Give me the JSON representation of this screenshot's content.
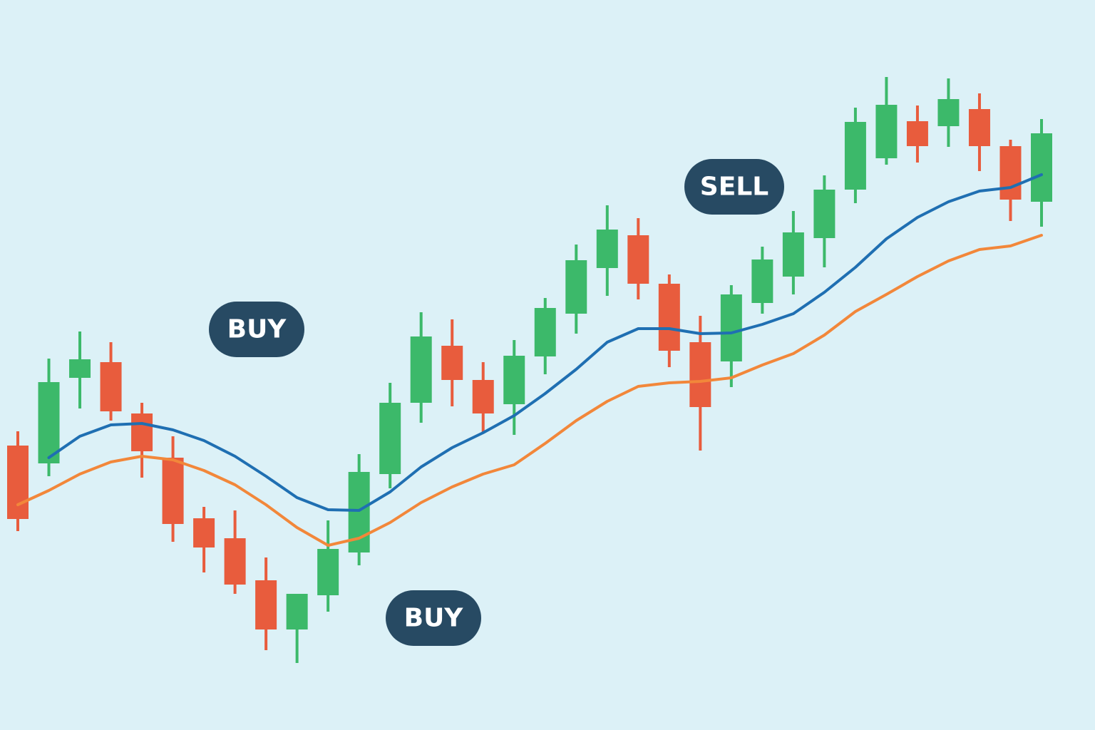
{
  "chart_data": {
    "type": "candlestick",
    "up_color": "#3cb96a",
    "down_color": "#e85c3d",
    "ylim": [
      0,
      1024
    ],
    "open": [
      399,
      374,
      494,
      516,
      444,
      382,
      297,
      269,
      210,
      141,
      189,
      249,
      359,
      459,
      539,
      491,
      457,
      524,
      584,
      648,
      694,
      626,
      544,
      517,
      599,
      636,
      690,
      758,
      802,
      854,
      847,
      871,
      819,
      741
    ],
    "high": [
      419,
      521,
      559,
      544,
      459,
      412,
      313,
      308,
      242,
      191,
      294,
      387,
      487,
      586,
      576,
      516,
      547,
      606,
      681,
      736,
      718,
      639,
      581,
      624,
      678,
      728,
      778,
      873,
      916,
      876,
      914,
      893,
      828,
      857
    ],
    "low": [
      279,
      356,
      451,
      434,
      354,
      264,
      221,
      191,
      112,
      94,
      166,
      231,
      339,
      431,
      454,
      416,
      414,
      499,
      556,
      609,
      604,
      509,
      392,
      481,
      584,
      611,
      649,
      739,
      793,
      796,
      818,
      784,
      714,
      706
    ],
    "close": [
      296,
      488,
      520,
      447,
      391,
      289,
      256,
      204,
      141,
      191,
      254,
      362,
      459,
      552,
      491,
      444,
      525,
      592,
      659,
      702,
      626,
      532,
      453,
      611,
      660,
      698,
      758,
      853,
      877,
      819,
      885,
      819,
      744,
      837
    ],
    "overlays": [
      {
        "color": "#1f6fb2",
        "values": [
          null,
          382,
          412,
          428,
          430,
          421,
          406,
          384,
          356,
          326,
          309,
          308,
          334,
          369,
          396,
          417,
          441,
          472,
          506,
          544,
          563,
          563,
          556,
          557,
          569,
          584,
          614,
          649,
          689,
          719,
          741,
          756,
          761,
          779
        ]
      },
      {
        "color": "#f2873a",
        "values": [
          316,
          336,
          359,
          376,
          384,
          379,
          364,
          344,
          316,
          284,
          259,
          269,
          291,
          319,
          341,
          359,
          372,
          402,
          434,
          461,
          482,
          487,
          489,
          494,
          512,
          528,
          554,
          587,
          611,
          636,
          658,
          674,
          679,
          694
        ]
      }
    ],
    "annotations": [
      "BUY",
      "BUY",
      "SELL"
    ]
  }
}
